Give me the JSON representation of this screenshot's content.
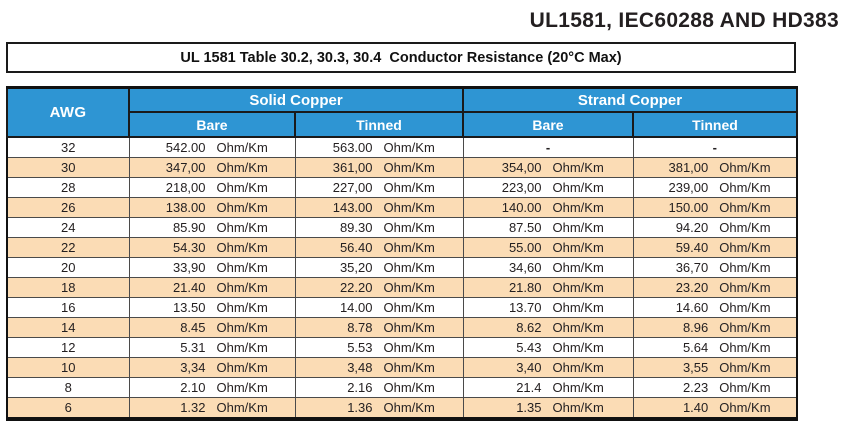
{
  "page_title": "UL1581, IEC60288 AND HD383",
  "subtitle": "UL 1581 Table 30.2, 30.3, 30.4  Conductor Resistance (20°C Max)",
  "colors": {
    "header_blue": "#2E95D3",
    "row_peach": "#FBDCB5",
    "border_dark": "#1A1A1A",
    "text": "#231F20"
  },
  "table": {
    "col_awg": "AWG",
    "group_headers": [
      {
        "label": "Solid Copper"
      },
      {
        "label": "Strand Copper"
      }
    ],
    "sub_headers": [
      "Bare",
      "Tinned",
      "Bare",
      "Tinned"
    ],
    "unit": "Ohm/Km",
    "no_value": "-",
    "rows": [
      {
        "awg": "32",
        "solid_bare": "542.00",
        "solid_tinned": "563.00",
        "strand_bare": "-",
        "strand_tinned": "-",
        "shaded": false
      },
      {
        "awg": "30",
        "solid_bare": "347,00",
        "solid_tinned": "361,00",
        "strand_bare": "354,00",
        "strand_tinned": "381,00",
        "shaded": true
      },
      {
        "awg": "28",
        "solid_bare": "218,00",
        "solid_tinned": "227,00",
        "strand_bare": "223,00",
        "strand_tinned": "239,00",
        "shaded": false
      },
      {
        "awg": "26",
        "solid_bare": "138.00",
        "solid_tinned": "143.00",
        "strand_bare": "140.00",
        "strand_tinned": "150.00",
        "shaded": true
      },
      {
        "awg": "24",
        "solid_bare": "85.90",
        "solid_tinned": "89.30",
        "strand_bare": "87.50",
        "strand_tinned": "94.20",
        "shaded": false
      },
      {
        "awg": "22",
        "solid_bare": "54.30",
        "solid_tinned": "56.40",
        "strand_bare": "55.00",
        "strand_tinned": "59.40",
        "shaded": true
      },
      {
        "awg": "20",
        "solid_bare": "33,90",
        "solid_tinned": "35,20",
        "strand_bare": "34,60",
        "strand_tinned": "36,70",
        "shaded": false
      },
      {
        "awg": "18",
        "solid_bare": "21.40",
        "solid_tinned": "22.20",
        "strand_bare": "21.80",
        "strand_tinned": "23.20",
        "shaded": true
      },
      {
        "awg": "16",
        "solid_bare": "13.50",
        "solid_tinned": "14.00",
        "strand_bare": "13.70",
        "strand_tinned": "14.60",
        "shaded": false
      },
      {
        "awg": "14",
        "solid_bare": "8.45",
        "solid_tinned": "8.78",
        "strand_bare": "8.62",
        "strand_tinned": "8.96",
        "shaded": true
      },
      {
        "awg": "12",
        "solid_bare": "5.31",
        "solid_tinned": "5.53",
        "strand_bare": "5.43",
        "strand_tinned": "5.64",
        "shaded": false
      },
      {
        "awg": "10",
        "solid_bare": "3,34",
        "solid_tinned": "3,48",
        "strand_bare": "3,40",
        "strand_tinned": "3,55",
        "shaded": true
      },
      {
        "awg": "8",
        "solid_bare": "2.10",
        "solid_tinned": "2.16",
        "strand_bare": "21.4",
        "strand_tinned": "2.23",
        "shaded": false
      },
      {
        "awg": "6",
        "solid_bare": "1.32",
        "solid_tinned": "1.36",
        "strand_bare": "1.35",
        "strand_tinned": "1.40",
        "shaded": true
      }
    ]
  }
}
